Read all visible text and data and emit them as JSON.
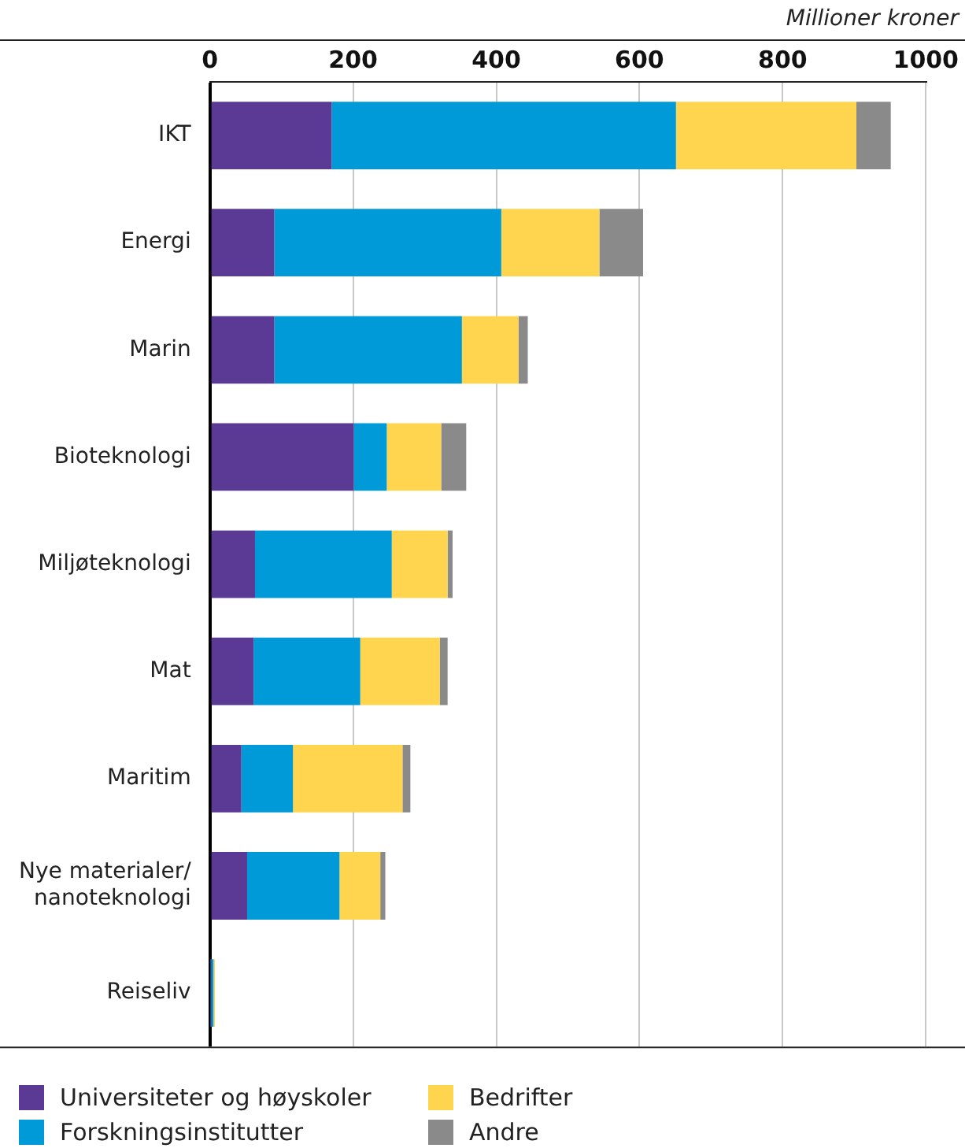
{
  "chart_data": {
    "type": "bar",
    "orientation": "horizontal",
    "stacked": true,
    "xlabel": "Millioner kroner",
    "categories": [
      "IKT",
      "Energi",
      "Marin",
      "Bioteknologi",
      "Miljøteknologi",
      "Mat",
      "Maritim",
      "Nye materialer/ nanoteknologi",
      "Reiseliv"
    ],
    "series": [
      {
        "name": "Universiteter og høyskoler",
        "color": "#5b3a96",
        "values": [
          170,
          90,
          90,
          201,
          63,
          61,
          44,
          52,
          1
        ]
      },
      {
        "name": "Forskningsinstitutter",
        "color": "#009ad8",
        "values": [
          481,
          317,
          262,
          46,
          191,
          149,
          72,
          129,
          4
        ]
      },
      {
        "name": "Bedrifter",
        "color": "#ffd54f",
        "values": [
          252,
          137,
          79,
          76,
          78,
          111,
          153,
          57,
          2
        ]
      },
      {
        "name": "Andre",
        "color": "#8a8a8a",
        "values": [
          48,
          61,
          13,
          35,
          7,
          11,
          11,
          7,
          0
        ]
      }
    ],
    "xlim": [
      0,
      1000
    ],
    "xticks": [
      0,
      200,
      400,
      600,
      800,
      1000
    ],
    "grid": "x",
    "legend": "bottom"
  }
}
